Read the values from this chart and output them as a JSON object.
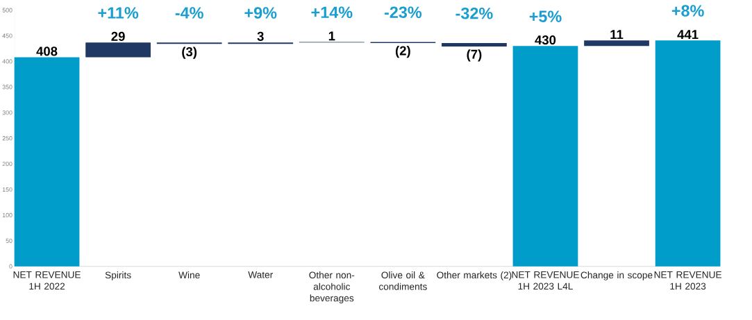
{
  "chart_data": {
    "type": "bar",
    "categories": [
      "NET REVENUE 1H 2022",
      "Spirits",
      "Wine",
      "Water",
      "Other non-alcoholic beverages",
      "Olive oil & condiments",
      "Other markets (2)",
      "NET REVENUE 1H 2023 L4L",
      "Change in scope",
      "NET REVENUE 1H 2023"
    ],
    "values": [
      408,
      29,
      -3,
      3,
      1,
      -2,
      -7,
      430,
      11,
      441
    ],
    "base": [
      0,
      408,
      437,
      434,
      437,
      438,
      436,
      0,
      430,
      0
    ],
    "colors": [
      "#009dcb",
      "#203864",
      "#203864",
      "#203864",
      "#203864",
      "#203864",
      "#203864",
      "#009dcb",
      "#203864",
      "#009dcb"
    ],
    "value_labels": [
      "408",
      "29",
      "(3)",
      "3",
      "1",
      "(2)",
      "(7)",
      "430",
      "11",
      "441"
    ],
    "ylim": [
      0,
      500
    ],
    "yticks": [
      0,
      50,
      100,
      150,
      200,
      250,
      300,
      350,
      400,
      450,
      500
    ],
    "grid": false,
    "annotations": [
      {
        "text": "+11%",
        "x": "Spirits",
        "y": 437
      },
      {
        "text": "-4%",
        "x": "Wine",
        "y": 437
      },
      {
        "text": "+9%",
        "x": "Water",
        "y": 437
      },
      {
        "text": "+14%",
        "x": "Other non-alcoholic beverages",
        "y": 438
      },
      {
        "text": "-23%",
        "x": "Olive oil & condiments",
        "y": 438
      },
      {
        "text": "-32%",
        "x": "Other markets (2)",
        "y": 436
      },
      {
        "text": "+5%",
        "x": "NET REVENUE 1H 2023 L4L",
        "y": 430
      },
      {
        "text": "+8%",
        "x": "NET REVENUE 1H 2023",
        "y": 441
      }
    ]
  }
}
